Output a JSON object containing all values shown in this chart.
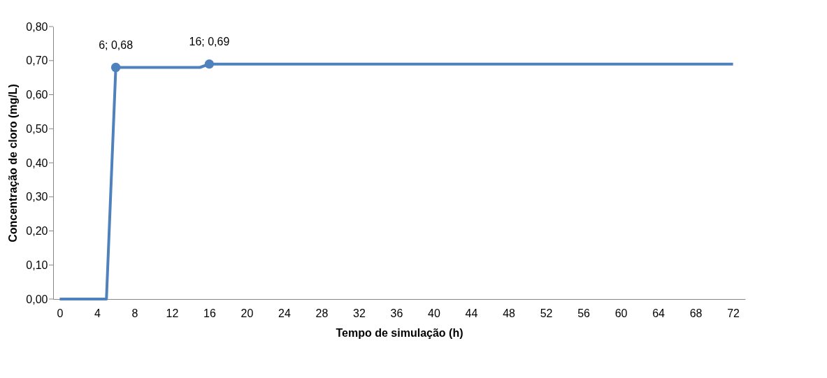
{
  "chart_data": {
    "type": "line",
    "xlabel": "Tempo de simulação (h)",
    "ylabel": "Concentração de cloro (mg/L)",
    "series": [
      {
        "color": "#4f81bd",
        "x": [
          0,
          5,
          6,
          15,
          16,
          72
        ],
        "values": [
          0,
          0,
          0.68,
          0.68,
          0.69,
          0.69
        ],
        "marker": "none"
      },
      {
        "type": "scatter",
        "color": "#4f81bd",
        "x": [
          6,
          16
        ],
        "values": [
          0.68,
          0.69
        ],
        "marker": "circle"
      }
    ],
    "annotations": [
      {
        "text": "6; 0,68",
        "x": 6,
        "y": 0.68
      },
      {
        "text": "16; 0,69",
        "x": 16,
        "y": 0.69
      }
    ],
    "xlim": [
      -0.7,
      73.3
    ],
    "xticks": [
      0,
      4,
      8,
      12,
      16,
      20,
      24,
      28,
      32,
      36,
      40,
      44,
      48,
      52,
      56,
      60,
      64,
      68,
      72
    ],
    "ylim": [
      0,
      0.8
    ],
    "yticks": [
      {
        "value": 0,
        "label": "0,00"
      },
      {
        "value": 0.1,
        "label": "0,10"
      },
      {
        "value": 0.2,
        "label": "0,20"
      },
      {
        "value": 0.3,
        "label": "0,30"
      },
      {
        "value": 0.4,
        "label": "0,40"
      },
      {
        "value": 0.5,
        "label": "0,50"
      },
      {
        "value": 0.6,
        "label": "0,60"
      },
      {
        "value": 0.7,
        "label": "0,70"
      },
      {
        "value": 0.8,
        "label": "0,80"
      }
    ],
    "grid": false
  }
}
